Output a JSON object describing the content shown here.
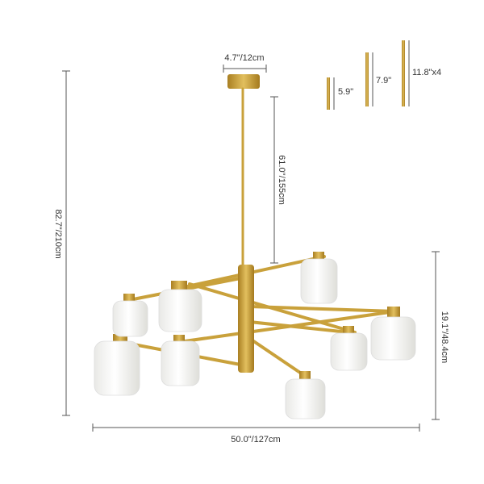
{
  "dimensions": {
    "canopy_width": "4.7\"/12cm",
    "rod_length": "61.0''/155cm",
    "total_height": "82.7\"/210cm",
    "body_height": "19.1\"/48.4cm",
    "total_width": "50.0\"/127cm"
  },
  "rods": [
    "5.9\"",
    "7.9\"",
    "11.8\"x4"
  ]
}
